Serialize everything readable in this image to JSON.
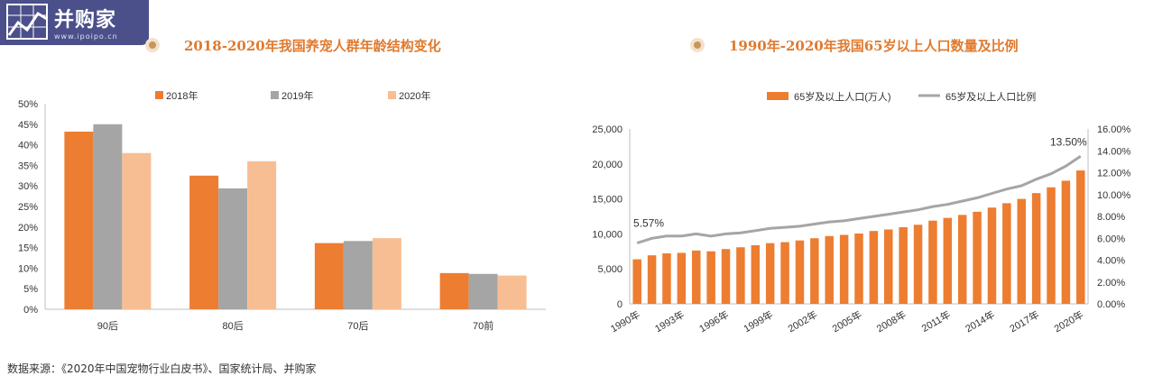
{
  "logo": {
    "name": "并购家",
    "url": "www.ipoipo.cn"
  },
  "colors": {
    "orange": "#ED7D31",
    "gray": "#A5A5A5",
    "peach": "#F8BE93",
    "title": "#E07A2F"
  },
  "chart_data": [
    {
      "type": "bar",
      "title": "2018-2020年我国养宠人群年龄结构变化",
      "categories": [
        "90后",
        "80后",
        "70后",
        "70前"
      ],
      "series": [
        {
          "name": "2018年",
          "values": [
            43.2,
            32.5,
            16.1,
            8.8
          ]
        },
        {
          "name": "2019年",
          "values": [
            45.0,
            29.4,
            16.6,
            8.6
          ]
        },
        {
          "name": "2020年",
          "values": [
            38.0,
            36.0,
            17.3,
            8.2
          ]
        }
      ],
      "ylim": [
        0,
        50
      ],
      "yticks": [
        "0%",
        "5%",
        "10%",
        "15%",
        "20%",
        "25%",
        "30%",
        "35%",
        "40%",
        "45%",
        "50%"
      ],
      "legend": "top"
    },
    {
      "type": "bar",
      "title": "1990年-2020年我国65岁以上人口数量及比例",
      "years": [
        1990,
        1991,
        1992,
        1993,
        1994,
        1995,
        1996,
        1997,
        1998,
        1999,
        2000,
        2001,
        2002,
        2003,
        2004,
        2005,
        2006,
        2007,
        2008,
        2009,
        2010,
        2011,
        2012,
        2013,
        2014,
        2015,
        2016,
        2017,
        2018,
        2019,
        2020
      ],
      "xticks": [
        "1990年",
        "1993年",
        "1996年",
        "1999年",
        "2002年",
        "2005年",
        "2008年",
        "2011年",
        "2014年",
        "2017年",
        "2020年"
      ],
      "series": [
        {
          "name": "65岁及以上人口(万人)",
          "type": "bar",
          "values": [
            6368,
            6938,
            7218,
            7289,
            7622,
            7510,
            7833,
            8085,
            8375,
            8679,
            8821,
            9062,
            9377,
            9692,
            9857,
            10055,
            10419,
            10636,
            10956,
            11307,
            11894,
            12288,
            12714,
            13161,
            13755,
            14386,
            15003,
            15831,
            16658,
            17603,
            19064
          ]
        },
        {
          "name": "65岁及以上人口比例",
          "type": "line",
          "values": [
            5.57,
            6.0,
            6.2,
            6.2,
            6.4,
            6.2,
            6.4,
            6.5,
            6.7,
            6.9,
            7.0,
            7.1,
            7.3,
            7.5,
            7.6,
            7.8,
            8.0,
            8.2,
            8.4,
            8.6,
            8.9,
            9.1,
            9.4,
            9.7,
            10.1,
            10.5,
            10.8,
            11.4,
            11.9,
            12.6,
            13.5
          ]
        }
      ],
      "y_left": {
        "lim": [
          0,
          25000
        ],
        "ticks": [
          "0",
          "5,000",
          "10,000",
          "15,000",
          "20,000",
          "25,000"
        ]
      },
      "y_right": {
        "lim": [
          0,
          16
        ],
        "ticks": [
          "0.00%",
          "2.00%",
          "4.00%",
          "6.00%",
          "8.00%",
          "10.00%",
          "12.00%",
          "14.00%",
          "16.00%"
        ]
      },
      "annotations": [
        "5.57%",
        "13.50%"
      ],
      "legend": "top"
    }
  ],
  "footer": "数据来源：《2020年中国宠物行业白皮书》、国家统计局、并购家"
}
